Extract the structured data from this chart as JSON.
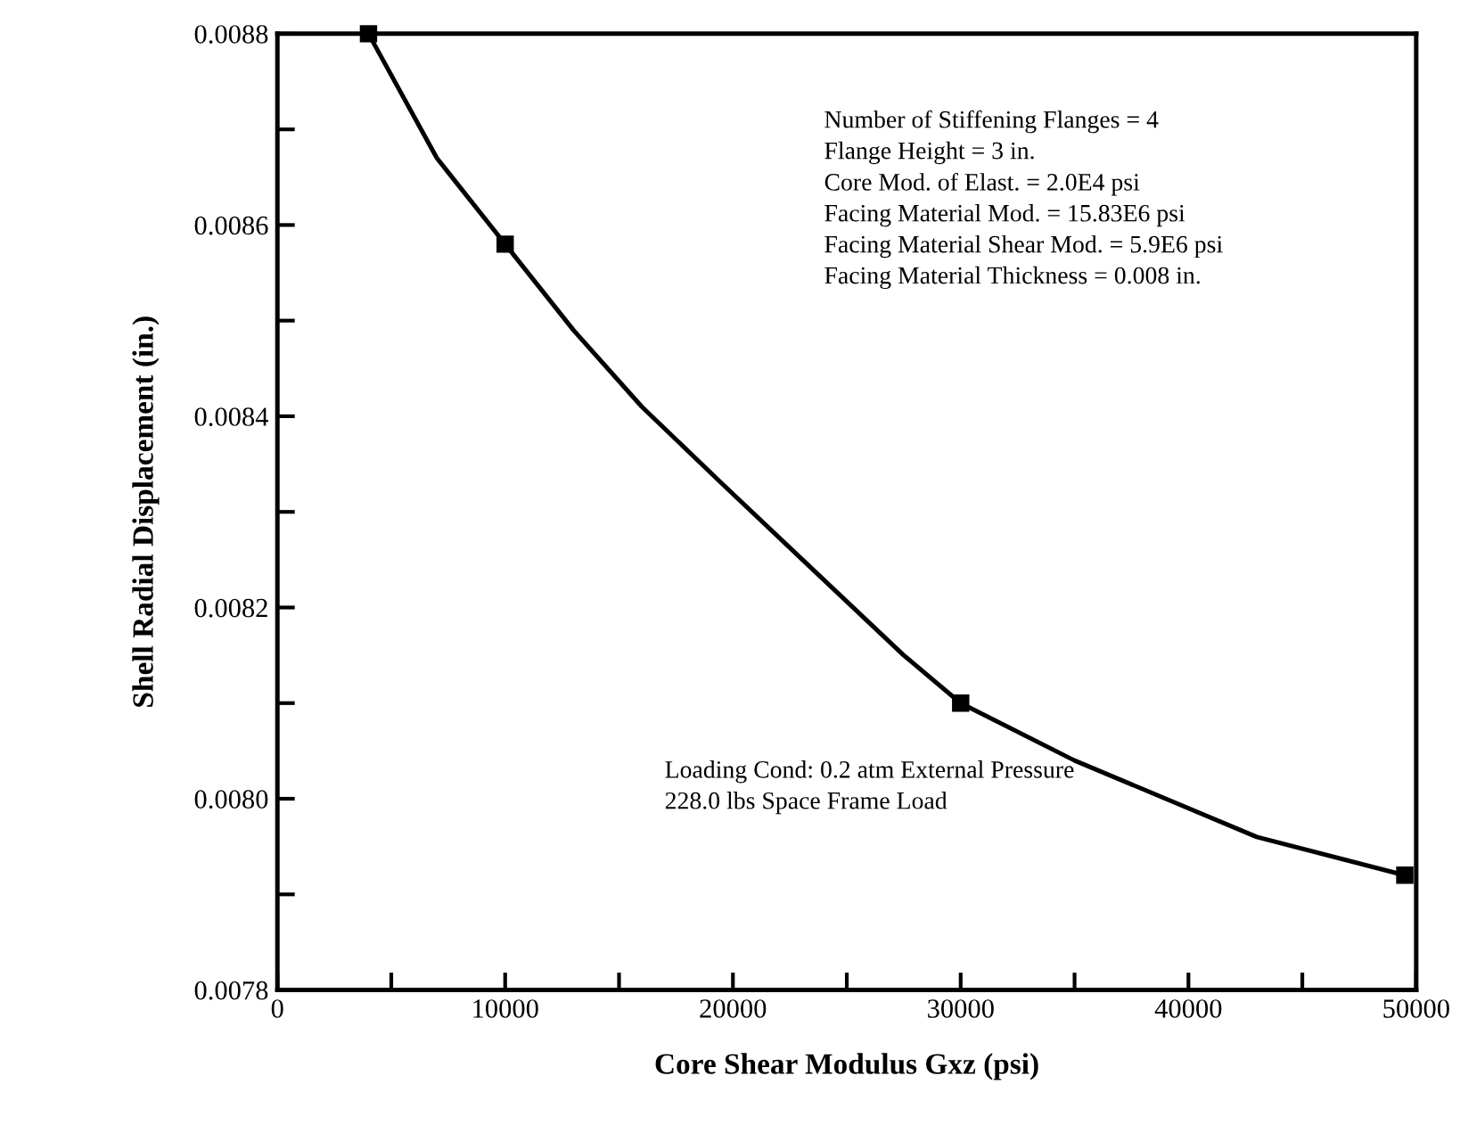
{
  "chart_data": {
    "type": "line",
    "xlabel": "Core Shear Modulus Gxz (psi)",
    "ylabel": "Shell Radial Displacement (in.)",
    "series": [
      {
        "color": "#000000",
        "marker": "none",
        "x": [
          4000,
          7000,
          10000,
          13000,
          16000,
          19500,
          23500,
          27500,
          30000,
          35000,
          43000,
          49500
        ],
        "values": [
          0.0088,
          0.00867,
          0.00858,
          0.00849,
          0.00841,
          0.00833,
          0.00824,
          0.00815,
          0.0081,
          0.00804,
          0.00796,
          0.00792
        ]
      },
      {
        "type": "scatter",
        "color": "#000000",
        "marker": "square",
        "x": [
          4000,
          10000,
          30000,
          49500
        ],
        "values": [
          0.0088,
          0.00858,
          0.0081,
          0.00792
        ]
      }
    ],
    "line_style": "solid",
    "grid": false,
    "legend": false,
    "xlim": [
      0,
      50000
    ],
    "xticks": [
      0,
      {
        "value": 5000,
        "label": null
      },
      10000,
      {
        "value": 15000,
        "label": null
      },
      20000,
      {
        "value": 25000,
        "label": null
      },
      30000,
      {
        "value": 35000,
        "label": null
      },
      40000,
      {
        "value": 45000,
        "label": null
      },
      50000
    ],
    "ylim": [
      0.0078,
      0.0088
    ],
    "yticks": [
      {
        "value": 0.0078,
        "label": "0.0078"
      },
      {
        "value": 0.0079,
        "label": null
      },
      {
        "value": 0.008,
        "label": "0.0080"
      },
      {
        "value": 0.0081,
        "label": null
      },
      {
        "value": 0.0082,
        "label": "0.0082"
      },
      {
        "value": 0.0083,
        "label": null
      },
      {
        "value": 0.0084,
        "label": "0.0084"
      },
      {
        "value": 0.0085,
        "label": null
      },
      {
        "value": 0.0086,
        "label": "0.0086"
      },
      {
        "value": 0.0087,
        "label": null
      },
      {
        "value": 0.0088,
        "label": "0.0088"
      }
    ],
    "annotations": [
      "Number of Stiffening Flanges = 4\nFlange Height = 3 in.\nCore Mod. of Elast. = 2.0E4 psi\nFacing Material Mod. = 15.83E6 psi\nFacing Material Shear Mod. = 5.9E6 psi\nFacing Material Thickness = 0.008 in.",
      "Loading Cond: 0.2 atm External Pressure\n228.0 lbs Space Frame Load"
    ]
  }
}
